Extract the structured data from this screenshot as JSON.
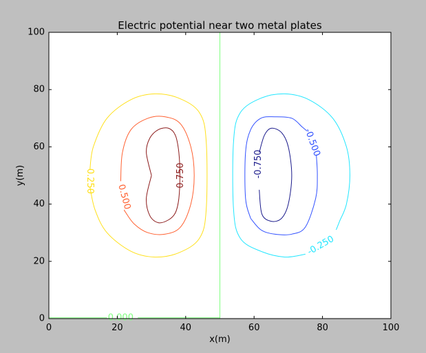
{
  "chart_data": {
    "type": "contour",
    "title": "Electric potential near two metal plates",
    "xlabel": "x(m)",
    "ylabel": "y(m)",
    "xlim": [
      0,
      100
    ],
    "ylim": [
      0,
      100
    ],
    "xticks": [
      "0",
      "20",
      "40",
      "60",
      "80",
      "100"
    ],
    "yticks": [
      "0",
      "20",
      "40",
      "60",
      "80",
      "100"
    ],
    "grid": false,
    "levels": [
      {
        "level": 0.75,
        "label": "0.750",
        "color": "#8b1a1a",
        "paths": [
          [
            [
              30,
              50
            ],
            [
              28.5,
              58
            ],
            [
              29.5,
              63
            ],
            [
              32,
              66
            ],
            [
              35,
              66.5
            ],
            [
              37,
              64
            ],
            [
              38,
              58
            ],
            [
              38.3,
              50
            ],
            [
              38,
              42
            ],
            [
              37,
              37
            ],
            [
              35,
              34.5
            ],
            [
              32,
              33.5
            ],
            [
              29.5,
              36
            ],
            [
              28.5,
              42
            ],
            [
              30,
              50
            ]
          ]
        ],
        "label_pos": [
          38.5,
          50
        ],
        "label_angle": -90
      },
      {
        "level": 0.5,
        "label": "0.500",
        "color": "#ff6030",
        "paths": [
          [
            [
              21,
              48
            ],
            [
              21.5,
              58
            ],
            [
              24,
              66
            ],
            [
              29,
              70
            ],
            [
              34,
              70.5
            ],
            [
              38.5,
              68
            ],
            [
              41.5,
              60
            ],
            [
              42.5,
              50
            ],
            [
              41.5,
              40
            ],
            [
              38.5,
              32
            ],
            [
              34,
              29.5
            ],
            [
              29,
              30
            ],
            [
              25,
              33
            ],
            [
              22.5,
              37
            ],
            [
              22,
              38
            ]
          ]
        ],
        "label_pos": [
          22,
          42.5
        ],
        "label_angle": 75
      },
      {
        "level": 0.25,
        "label": "0.250",
        "color": "#ffe01a",
        "paths": [
          [
            [
              12,
              52
            ],
            [
              13,
              60
            ],
            [
              17,
              70
            ],
            [
              24,
              76.5
            ],
            [
              31,
              78.5
            ],
            [
              38,
              77
            ],
            [
              44,
              72
            ],
            [
              46,
              62
            ],
            [
              46,
              38
            ],
            [
              44,
              28
            ],
            [
              38,
              23
            ],
            [
              31,
              21.5
            ],
            [
              24,
              23.5
            ],
            [
              17,
              30
            ],
            [
              13.5,
              38
            ],
            [
              12,
              46
            ]
          ]
        ],
        "label_pos": [
          12,
          48
        ],
        "label_angle": 90
      },
      {
        "level": 0.0,
        "label": "0.000",
        "color": "#80ff80",
        "paths": [
          [
            [
              50,
              0
            ],
            [
              50,
              100
            ]
          ],
          [
            [
              0,
              0.3
            ],
            [
              17,
              0.3
            ]
          ],
          [
            [
              26,
              0.3
            ],
            [
              50,
              0.3
            ]
          ]
        ],
        "label_pos": [
          21,
          0.3
        ],
        "label_angle": 0
      },
      {
        "level": -0.25,
        "label": "-0.250",
        "color": "#20e6ff",
        "paths": [
          [
            [
              75,
              22.5
            ],
            [
              69,
              21.5
            ],
            [
              62,
              23.5
            ],
            [
              56,
              28
            ],
            [
              54,
              38
            ],
            [
              54,
              62
            ],
            [
              56,
              72
            ],
            [
              62,
              77
            ],
            [
              69,
              78.5
            ],
            [
              76,
              76.5
            ],
            [
              83,
              70
            ],
            [
              87,
              60
            ],
            [
              88,
              50
            ],
            [
              87,
              40
            ],
            [
              85,
              34
            ],
            [
              84,
              31
            ]
          ]
        ],
        "label_pos": [
          79.5,
          25.5
        ],
        "label_angle": -30
      },
      {
        "level": -0.5,
        "label": "-0.500",
        "color": "#3050ff",
        "paths": [
          [
            [
              59,
              35
            ],
            [
              57.5,
              42
            ],
            [
              57.5,
              58
            ],
            [
              59,
              66
            ],
            [
              62,
              70
            ],
            [
              66,
              70.5
            ],
            [
              71,
              70
            ],
            [
              74,
              67
            ],
            [
              75.5,
              65.5
            ]
          ],
          [
            [
              78.2,
              57
            ],
            [
              78.5,
              50
            ],
            [
              78,
              42
            ],
            [
              75,
              32
            ],
            [
              71,
              29.5
            ],
            [
              66,
              29.5
            ],
            [
              62,
              31
            ],
            [
              59,
              35
            ]
          ]
        ],
        "label_pos": [
          77,
          61.5
        ],
        "label_angle": 70
      },
      {
        "level": -0.75,
        "label": "-0.750",
        "color": "#1a1a8b",
        "paths": [
          [
            [
              61.5,
              45
            ],
            [
              62.3,
              36.5
            ],
            [
              65,
              34
            ],
            [
              68,
              35
            ],
            [
              70,
              40
            ],
            [
              71,
              50
            ],
            [
              70,
              60
            ],
            [
              68,
              65
            ],
            [
              65,
              66.5
            ],
            [
              63,
              64
            ],
            [
              61.5,
              58
            ]
          ]
        ],
        "label_pos": [
          61.3,
          54
        ],
        "label_angle": -90
      }
    ]
  }
}
